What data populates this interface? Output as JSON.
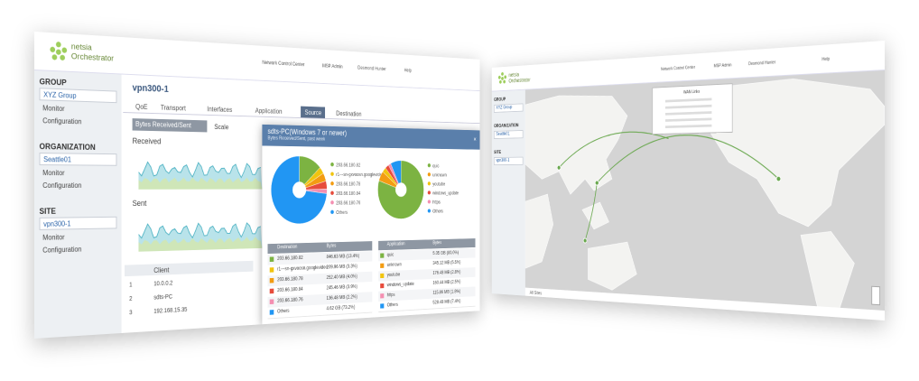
{
  "left_window": {
    "logo": "netsia",
    "logo_sub": "Orchestrator",
    "header_items": [
      "Network Control Center",
      "MSP Admin",
      "Desmond Hunter",
      "Help"
    ],
    "sidebar": [
      {
        "heading": "GROUP",
        "select": "XYZ Group",
        "links": [
          "Monitor",
          "Configuration"
        ]
      },
      {
        "heading": "ORGANIZATION",
        "select": "Seattle01",
        "links": [
          "Monitor",
          "Configuration"
        ]
      },
      {
        "heading": "SITE",
        "select": "vpn300-1",
        "links": [
          "Monitor",
          "Configuration"
        ]
      }
    ],
    "page_title": "vpn300-1",
    "tabs": [
      "QoE",
      "Transport",
      "Interfaces",
      "Application",
      "Source",
      "Destination"
    ],
    "metric_select": "Bytes Received/Sent",
    "scale": "Scale",
    "received": "Received",
    "sent": "Sent",
    "client_table": {
      "header": "Client",
      "rows": [
        [
          "1",
          "10.0.0.2"
        ],
        [
          "2",
          "sdts-PC"
        ],
        [
          "3",
          "192.168.15.35"
        ]
      ]
    },
    "popup": {
      "title": "sdts-PC(Windows 7 or newer)",
      "subtitle": "Bytes Received/Sent, past week",
      "destination_chart": {
        "type": "pie",
        "categories": [
          "203.66.180.82",
          "r1---sn-gxvoosn.googlevideo",
          "203.66.180.78",
          "203.66.180.84",
          "203.66.180.76",
          "Others"
        ],
        "values": [
          13.4,
          3.3,
          4.0,
          3.9,
          2.2,
          73.2
        ],
        "colors": [
          "#7cb342",
          "#f1c40f",
          "#f39c12",
          "#e74c3c",
          "#f48fb1",
          "#2196f3"
        ]
      },
      "application_chart": {
        "type": "pie",
        "categories": [
          "quic",
          "unknown",
          "youtube",
          "windows_update",
          "https",
          "Others"
        ],
        "values": [
          80.0,
          5.5,
          2.8,
          2.5,
          1.8,
          7.4
        ],
        "colors": [
          "#7cb342",
          "#f39c12",
          "#f1c40f",
          "#e74c3c",
          "#f48fb1",
          "#2196f3"
        ]
      },
      "destination_table": {
        "columns": [
          "Destination",
          "Bytes"
        ],
        "rows": [
          [
            "203.66.180.82",
            "846.63 MB (13.4%)"
          ],
          [
            "r1---sn-gxvoosn.googlevideo",
            "209.96 MB (3.3%)"
          ],
          [
            "203.66.180.78",
            "252.40 MB (4.0%)"
          ],
          [
            "203.66.180.84",
            "245.46 MB (3.9%)"
          ],
          [
            "203.66.180.76",
            "136.48 MB (2.2%)"
          ],
          [
            "Others",
            "4.62 GB (73.2%)"
          ]
        ]
      },
      "application_table": {
        "columns": [
          "Application",
          "Bytes"
        ],
        "rows": [
          [
            "quic",
            "5.05 GB (80.0%)"
          ],
          [
            "unknown",
            "345.12 MB (5.5%)"
          ],
          [
            "youtube",
            "176.48 MB (2.8%)"
          ],
          [
            "windows_update",
            "160.44 MB (2.5%)"
          ],
          [
            "https",
            "115.86 MB (1.8%)"
          ],
          [
            "Others",
            "528.48 MB (7.4%)"
          ]
        ]
      }
    }
  },
  "right_window": {
    "logo": "netsia",
    "logo_sub": "Orchestrator",
    "header_items": [
      "Network Control Center",
      "MSP Admin",
      "Desmond Hunter",
      "Help"
    ],
    "sidebar": [
      {
        "heading": "GROUP",
        "select": "XYZ Group"
      },
      {
        "heading": "ORGANIZATION",
        "select": "Seattle01"
      },
      {
        "heading": "SITE",
        "select": "vpn300-1"
      }
    ],
    "map_box_title": "WAN Links",
    "map_footer": "All Sites"
  }
}
